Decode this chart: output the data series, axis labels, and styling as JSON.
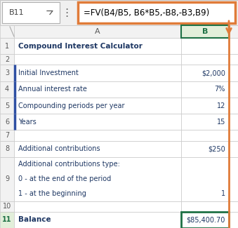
{
  "formula_bar_cell": "B11",
  "formula_bar_text": "=FV(B4/B5, B6*B5,-B8,-B3,B9)",
  "rows": [
    {
      "row": 1,
      "col_a": "Compound Interest Calculator",
      "col_b": "",
      "bold_a": true
    },
    {
      "row": 2,
      "col_a": "",
      "col_b": "",
      "bold_a": false
    },
    {
      "row": 3,
      "col_a": "Initial Investment",
      "col_b": "$2,000",
      "bold_a": false,
      "blue_border": true
    },
    {
      "row": 4,
      "col_a": "Annual interest rate",
      "col_b": "7%",
      "bold_a": false,
      "blue_border": true
    },
    {
      "row": 5,
      "col_a": "Compounding periods per year",
      "col_b": "12",
      "bold_a": false,
      "blue_border": true
    },
    {
      "row": 6,
      "col_a": "Years",
      "col_b": "15",
      "bold_a": false,
      "blue_border": true
    },
    {
      "row": 7,
      "col_a": "",
      "col_b": "",
      "bold_a": false,
      "blue_border": false
    },
    {
      "row": 8,
      "col_a": "Additional contributions",
      "col_b": "$250",
      "bold_a": false,
      "blue_border": false
    },
    {
      "row": 9,
      "col_a": "Additional contributions type:\n0 - at the end of the period\n1 - at the beginning",
      "col_b": "1",
      "bold_a": false,
      "blue_border": false
    },
    {
      "row": 10,
      "col_a": "",
      "col_b": "",
      "bold_a": false,
      "blue_border": false
    },
    {
      "row": 11,
      "col_a": "Balance",
      "col_b": "$85,400.70",
      "bold_a": true,
      "blue_border": false
    }
  ],
  "bg_color": "#ffffff",
  "grid_color": "#c8c8c8",
  "header_bg": "#f2f2f2",
  "selected_col_header_color": "#1e7145",
  "selected_col_header_bg": "#e2efda",
  "normal_col_header_color": "#595959",
  "row_num_color": "#595959",
  "cell_text_color": "#1f3864",
  "formula_bar_border": "#e07b39",
  "formula_bar_text_color": "#000000",
  "formula_cell_ref_color": "#444444",
  "balance_border_color": "#1e7145",
  "col_b_right_border_color": "#e07b39",
  "arrow_color": "#e07b39",
  "blue_row_border": "#2e4fa3",
  "row_heights": [
    1.0,
    0.65,
    1.0,
    1.0,
    1.0,
    1.0,
    0.65,
    1.0,
    2.7,
    0.65,
    1.0
  ]
}
